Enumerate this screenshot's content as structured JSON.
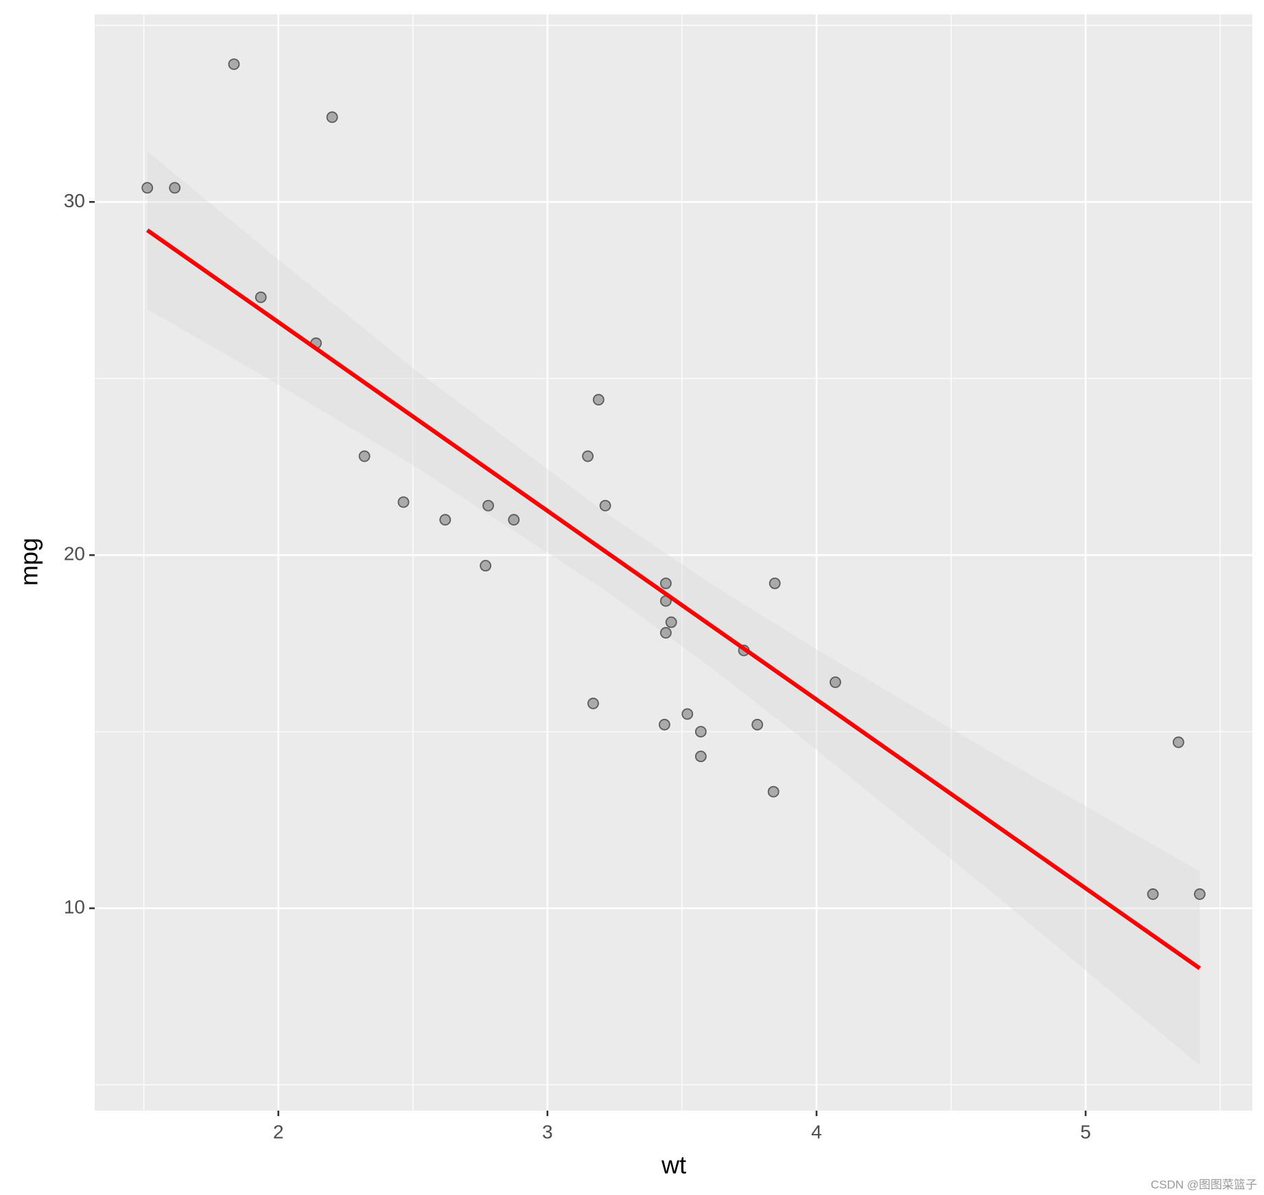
{
  "chart_data": {
    "type": "scatter",
    "x_label": "wt",
    "y_label": "mpg",
    "watermark": "CSDN @图图菜篮子",
    "xlim": [
      1.3175,
      5.6195
    ],
    "ylim": [
      4.27,
      35.31
    ],
    "xticks": [
      2,
      3,
      4,
      5
    ],
    "yticks": [
      10,
      20,
      30
    ],
    "xminor": [
      1.5,
      2.5,
      3.5,
      4.5,
      5.5
    ],
    "yminor": [
      5,
      15,
      25,
      35
    ],
    "grid": true,
    "point_color": "#7f7f7f",
    "x": [
      2.62,
      2.875,
      2.32,
      3.215,
      3.44,
      3.46,
      3.57,
      3.19,
      3.15,
      3.44,
      3.44,
      4.07,
      3.73,
      3.78,
      5.25,
      5.424,
      5.345,
      2.2,
      1.615,
      1.835,
      2.465,
      3.52,
      3.435,
      3.84,
      3.845,
      1.935,
      2.14,
      1.513,
      3.17,
      2.77,
      3.57,
      2.78
    ],
    "y": [
      21.0,
      21.0,
      22.8,
      21.4,
      18.7,
      18.1,
      14.3,
      24.4,
      22.8,
      19.2,
      17.8,
      16.4,
      17.3,
      15.2,
      10.4,
      10.4,
      14.7,
      32.4,
      30.4,
      33.9,
      21.5,
      15.5,
      15.2,
      13.3,
      19.2,
      27.3,
      26.0,
      30.4,
      15.8,
      19.7,
      15.0,
      21.4
    ],
    "fit": {
      "color": "#ff0000",
      "x": [
        1.513,
        5.424
      ],
      "y": [
        29.199,
        8.299
      ]
    },
    "band": {
      "x": [
        1.513,
        2.0,
        2.5,
        3.217,
        3.6,
        4.0,
        4.7,
        5.424
      ],
      "lower": [
        26.96,
        24.83,
        22.55,
        18.99,
        16.86,
        14.49,
        10.15,
        5.55
      ],
      "upper": [
        31.43,
        28.37,
        25.3,
        21.19,
        19.23,
        17.33,
        14.19,
        11.05
      ]
    }
  }
}
